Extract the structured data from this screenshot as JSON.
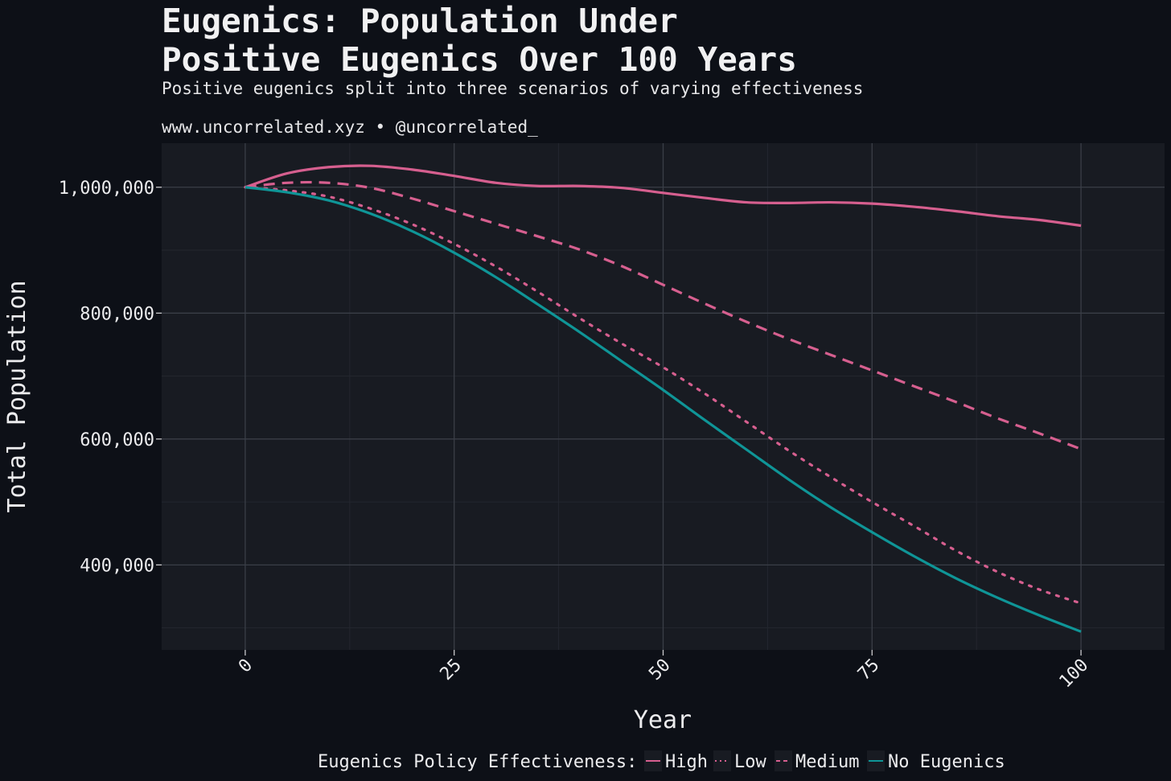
{
  "header": {
    "title_line1": "Eugenics: Population Under",
    "title_line2": "Positive Eugenics Over 100 Years",
    "subtitle": "Positive eugenics split into three scenarios of varying effectiveness",
    "caption": "www.uncorrelated.xyz • @uncorrelated_"
  },
  "colors": {
    "background": "#0d1017",
    "panel": "#181b22",
    "grid_major": "#3a3e47",
    "grid_minor": "#23272f",
    "pink": "#d65f8f",
    "teal": "#0f9597"
  },
  "chart_data": {
    "type": "line",
    "xlabel": "Year",
    "ylabel": "Total Population",
    "xlim": [
      -10,
      110
    ],
    "ylim": [
      265000,
      1070000
    ],
    "x_ticks": [
      0,
      25,
      50,
      75,
      100
    ],
    "x_tick_labels": [
      "0",
      "25",
      "50",
      "75",
      "100"
    ],
    "y_ticks": [
      400000,
      600000,
      800000,
      1000000
    ],
    "y_tick_labels": [
      "400,000",
      "600,000",
      "800,000",
      "1,000,000"
    ],
    "grid": true,
    "legend_position": "bottom",
    "legend_title": "Eugenics Policy Effectiveness:",
    "x": [
      0,
      5,
      10,
      15,
      20,
      25,
      30,
      35,
      40,
      45,
      50,
      55,
      60,
      65,
      70,
      75,
      80,
      85,
      90,
      95,
      100
    ],
    "series": [
      {
        "name": "High",
        "color": "#d65f8f",
        "dash": "solid",
        "values": [
          1000000,
          1022000,
          1032000,
          1034000,
          1028000,
          1018000,
          1007000,
          1002000,
          1002000,
          999000,
          991000,
          983000,
          976000,
          975000,
          976000,
          974000,
          969000,
          962000,
          954000,
          948000,
          939000
        ]
      },
      {
        "name": "Low",
        "color": "#d65f8f",
        "dash": "dotted",
        "values": [
          1000000,
          995000,
          985000,
          966000,
          941000,
          910000,
          874000,
          834000,
          792000,
          752000,
          714000,
          672000,
          627000,
          582000,
          540000,
          500000,
          462000,
          423000,
          389000,
          361000,
          339000
        ]
      },
      {
        "name": "Medium",
        "color": "#d65f8f",
        "dash": "dashed",
        "values": [
          1000000,
          1007000,
          1007000,
          999000,
          982000,
          962000,
          942000,
          922000,
          901000,
          875000,
          845000,
          815000,
          786000,
          759000,
          734000,
          709000,
          684000,
          659000,
          633000,
          609000,
          584000
        ]
      },
      {
        "name": "No Eugenics",
        "color": "#0f9597",
        "dash": "solid",
        "values": [
          1000000,
          992000,
          979000,
          958000,
          930000,
          896000,
          857000,
          814000,
          770000,
          724000,
          678000,
          630000,
          583000,
          536000,
          492000,
          452000,
          414000,
          379000,
          348000,
          320000,
          294000
        ]
      }
    ]
  }
}
